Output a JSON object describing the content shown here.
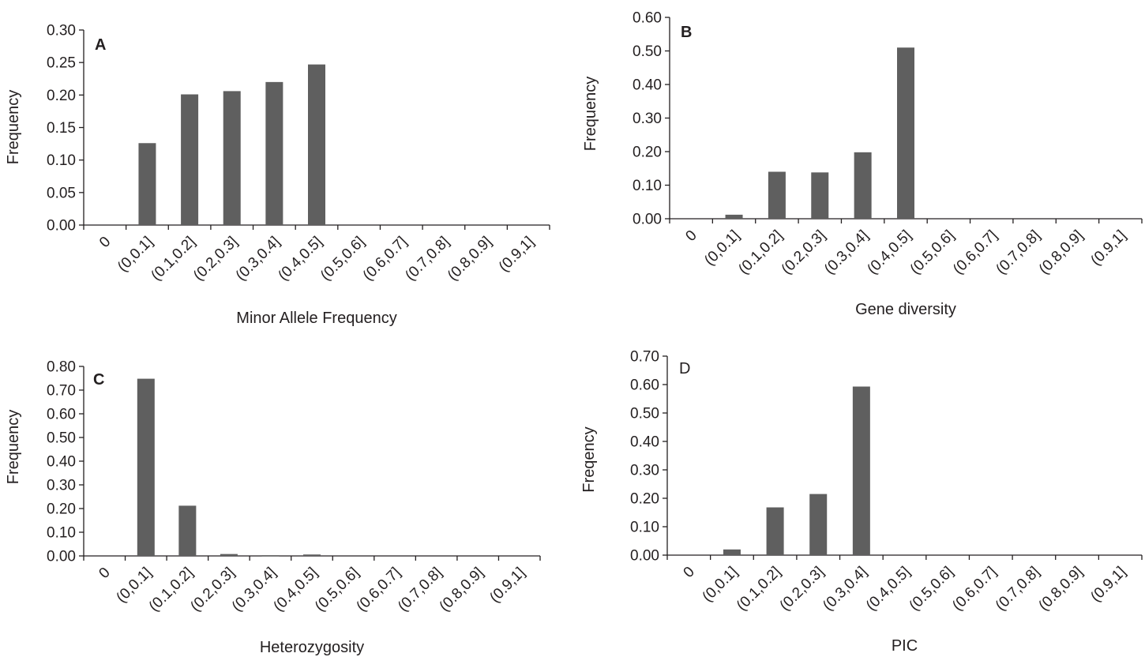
{
  "chart_data": [
    {
      "type": "bar",
      "panel_label": "A",
      "categories": [
        "0",
        "(0,0.1]",
        "(0.1,0.2]",
        "(0.2,0.3]",
        "(0.3,0.4]",
        "(0.4,0.5]",
        "(0.5,0.6]",
        "(0.6,0.7]",
        "(0.7,0.8]",
        "(0.8,0.9]",
        "(0.9,1]"
      ],
      "values": [
        0,
        0.126,
        0.201,
        0.206,
        0.22,
        0.247,
        0,
        0,
        0,
        0,
        0
      ],
      "yticks": [
        "0.00",
        "0.05",
        "0.10",
        "0.15",
        "0.20",
        "0.25",
        "0.30"
      ],
      "ylim": [
        0,
        0.3
      ],
      "xlabel": "Minor Allele Frequency",
      "ylabel": "Frequency",
      "grid": false,
      "bar_color": "#5f5f5f"
    },
    {
      "type": "bar",
      "panel_label": "B",
      "categories": [
        "0",
        "(0,0.1]",
        "(0.1,0.2]",
        "(0.2,0.3]",
        "(0.3,0.4]",
        "(0.4,0.5]",
        "(0.5,0.6]",
        "(0.6,0.7]",
        "(0.7,0.8]",
        "(0.8,0.9]",
        "(0.9,1]"
      ],
      "values": [
        0,
        0.012,
        0.14,
        0.138,
        0.198,
        0.51,
        0,
        0,
        0,
        0,
        0
      ],
      "yticks": [
        "0.00",
        "0.10",
        "0.20",
        "0.30",
        "0.40",
        "0.50",
        "0.60"
      ],
      "ylim": [
        0,
        0.6
      ],
      "xlabel": "Gene diversity",
      "ylabel": "Frequency",
      "grid": false,
      "bar_color": "#5f5f5f"
    },
    {
      "type": "bar",
      "panel_label": "C",
      "categories": [
        "0",
        "(0,0.1]",
        "(0.1,0.2]",
        "(0.2,0.3]",
        "(0.3,0.4]",
        "(0.4,0.5]",
        "(0.5,0.6]",
        "(0.6,0.7]",
        "(0.7,0.8]",
        "(0.8,0.9]",
        "(0.9,1]"
      ],
      "values": [
        0,
        0.748,
        0.212,
        0.008,
        0.003,
        0.006,
        0,
        0,
        0,
        0,
        0
      ],
      "yticks": [
        "0.00",
        "0.10",
        "0.20",
        "0.30",
        "0.40",
        "0.50",
        "0.60",
        "0.70",
        "0.80"
      ],
      "ylim": [
        0,
        0.8
      ],
      "xlabel": "Heterozygosity",
      "ylabel": "Frequency",
      "grid": false,
      "bar_color": "#5f5f5f"
    },
    {
      "type": "bar",
      "panel_label": "D",
      "categories": [
        "0",
        "(0,0.1]",
        "(0.1,0.2]",
        "(0.2,0.3]",
        "(0.3,0.4]",
        "(0.4,0.5]",
        "(0.5,0.6]",
        "(0.6,0.7]",
        "(0.7,0.8]",
        "(0.8,0.9]",
        "(0.9,1]"
      ],
      "values": [
        0,
        0.02,
        0.168,
        0.215,
        0.593,
        0,
        0,
        0,
        0,
        0,
        0
      ],
      "yticks": [
        "0.00",
        "0.10",
        "0.20",
        "0.30",
        "0.40",
        "0.50",
        "0.60",
        "0.70"
      ],
      "ylim": [
        0,
        0.7
      ],
      "xlabel": "PIC",
      "ylabel": "Freqency",
      "grid": false,
      "bar_color": "#5f5f5f"
    }
  ]
}
